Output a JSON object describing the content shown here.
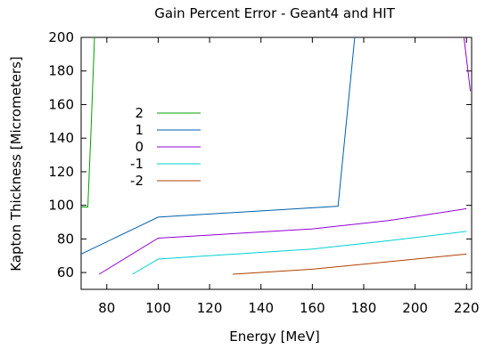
{
  "chart_data": {
    "type": "line",
    "title": "Gain Percent Error - Geant4 and HIT",
    "xlabel": "Energy [MeV]",
    "ylabel": "Kapton Thickness [Micrometers]",
    "xlim": [
      70,
      222
    ],
    "ylim": [
      50,
      200
    ],
    "x_ticks": [
      80,
      100,
      120,
      140,
      160,
      180,
      200,
      220
    ],
    "y_ticks": [
      60,
      80,
      100,
      120,
      140,
      160,
      180,
      200
    ],
    "grid": false,
    "legend_position": "left-center",
    "series": [
      {
        "name": "2",
        "color": "#00a000",
        "points": [
          [
            70,
            99
          ],
          [
            72.6,
            99
          ],
          [
            73.8,
            142
          ],
          [
            75.2,
            200
          ]
        ]
      },
      {
        "name": "1",
        "color": "#0060ad",
        "points": [
          [
            70,
            71
          ],
          [
            100,
            93
          ],
          [
            170,
            99.5
          ],
          [
            176.5,
            200
          ]
        ]
      },
      {
        "name": "0",
        "color": "#9400d3",
        "points": [
          [
            77,
            59
          ],
          [
            100,
            80.5
          ],
          [
            160,
            86
          ],
          [
            190,
            91
          ],
          [
            220,
            98
          ]
        ]
      },
      {
        "name": "-1",
        "color": "#00d0d0",
        "points": [
          [
            90,
            59
          ],
          [
            100,
            68
          ],
          [
            160,
            74
          ],
          [
            190,
            79
          ],
          [
            220,
            84.5
          ]
        ]
      },
      {
        "name": "-2",
        "color": "#b04000",
        "points": [
          [
            129,
            59
          ],
          [
            160,
            62
          ],
          [
            190,
            66.5
          ],
          [
            220,
            71
          ]
        ]
      },
      {
        "name": "",
        "color": "#9400d3",
        "points": [
          [
            219,
            200
          ],
          [
            221.5,
            168
          ]
        ]
      }
    ]
  }
}
